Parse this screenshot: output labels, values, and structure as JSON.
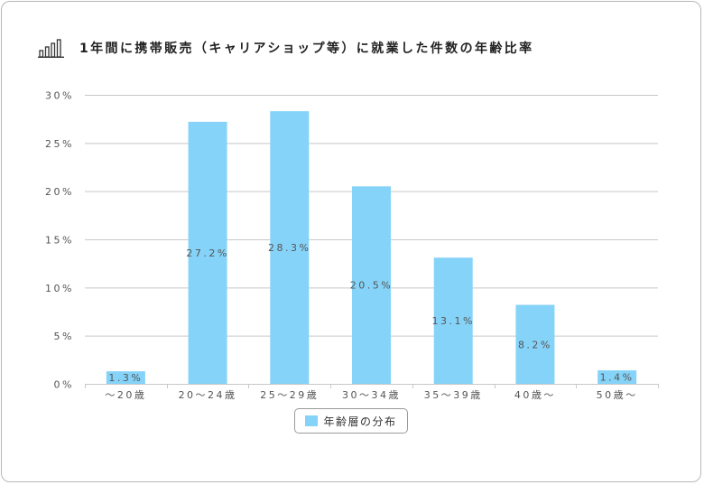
{
  "title": "1年間に携帯販売（キャリアショップ等）に就業した件数の年齢比率",
  "icons": {
    "title_icon": "bar-chart-icon"
  },
  "colors": {
    "bar": "#85d3f8",
    "grid": "#c8c8c8",
    "axis_text": "#555555",
    "label_text": "#555555"
  },
  "chart_data": {
    "type": "bar",
    "title": "1年間に携帯販売（キャリアショップ等）に就業した件数の年齢比率",
    "categories": [
      "～20歳",
      "20～24歳",
      "25～29歳",
      "30～34歳",
      "35～39歳",
      "40歳～",
      "50歳～"
    ],
    "series": [
      {
        "name": "年齢層の分布",
        "values": [
          1.3,
          27.2,
          28.3,
          20.5,
          13.1,
          8.2,
          1.4
        ]
      }
    ],
    "data_labels": [
      "1.3%",
      "27.2%",
      "28.3%",
      "20.5%",
      "13.1%",
      "8.2%",
      "1.4%"
    ],
    "ylim": [
      0,
      30
    ],
    "yticks": [
      0,
      5,
      10,
      15,
      20,
      25,
      30
    ],
    "ytick_labels": [
      "0%",
      "5%",
      "10%",
      "15%",
      "20%",
      "25%",
      "30%"
    ],
    "grid": true,
    "legend_position": "bottom-center",
    "xlabel": "",
    "ylabel": ""
  }
}
